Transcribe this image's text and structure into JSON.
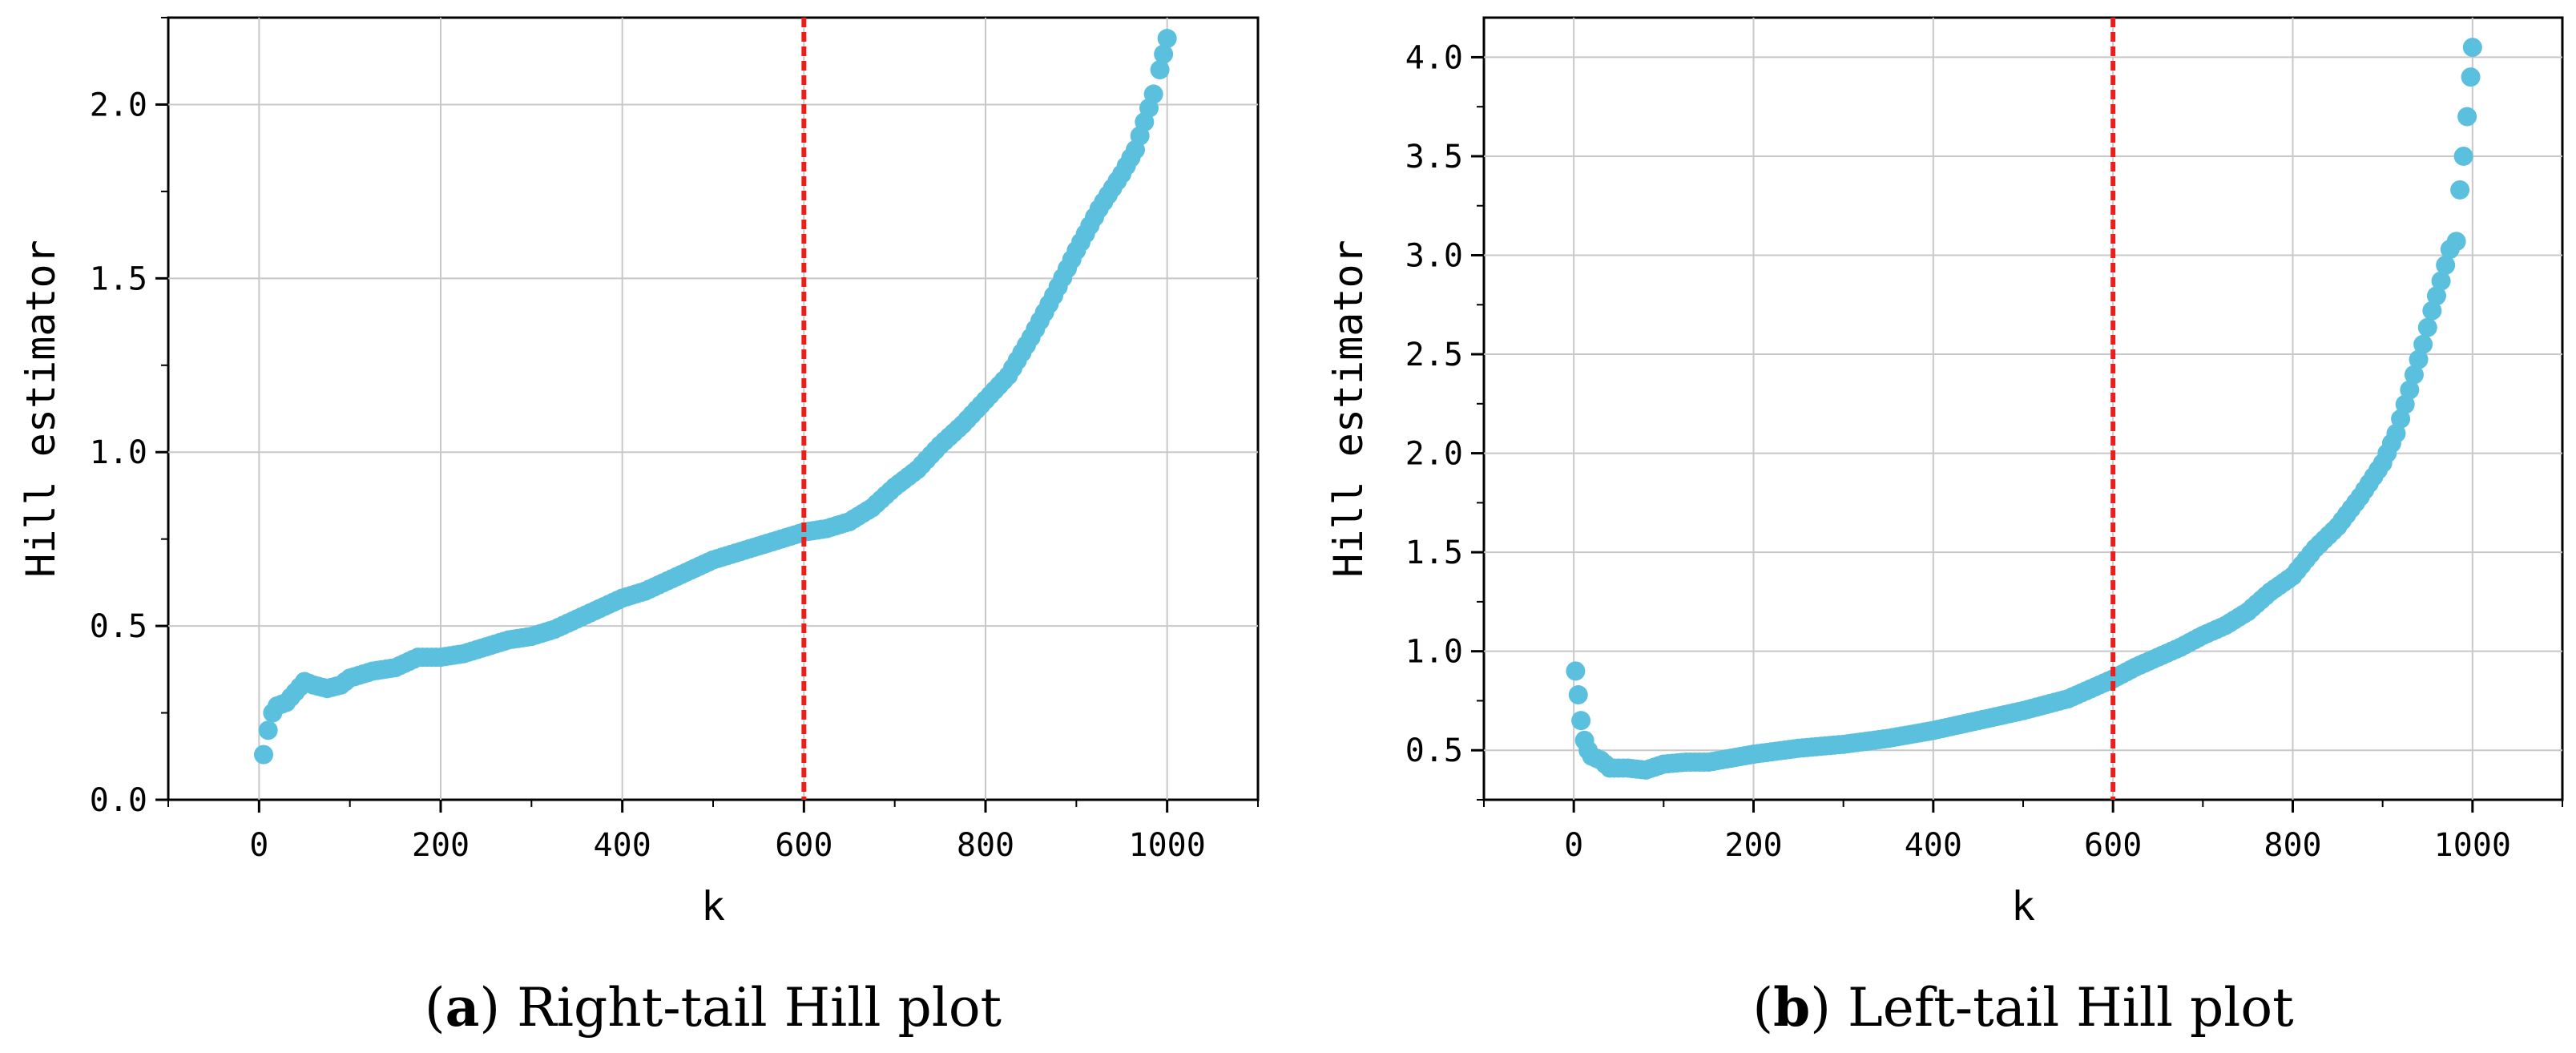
{
  "chart_data": [
    {
      "id": "a",
      "type": "scatter",
      "caption_letter": "a",
      "caption_text": "Right-tail Hill plot",
      "xlabel": "k",
      "ylabel": "Hill estimator",
      "xlim": [
        -100,
        1100
      ],
      "ylim": [
        0.0,
        2.25
      ],
      "xticks": [
        0,
        200,
        400,
        600,
        800,
        1000
      ],
      "yticks": [
        0.0,
        0.5,
        1.0,
        1.5,
        2.0
      ],
      "ytick_labels": [
        "0.0",
        "0.5",
        "1.0",
        "1.5",
        "2.0"
      ],
      "grid": true,
      "point_color": "#5bc0de",
      "threshold_k": 600,
      "threshold_color": "#e8201c",
      "series": {
        "name": "Hill estimate",
        "points": [
          [
            5,
            0.13
          ],
          [
            10,
            0.2
          ],
          [
            15,
            0.25
          ],
          [
            20,
            0.27
          ],
          [
            30,
            0.28
          ],
          [
            40,
            0.31
          ],
          [
            50,
            0.34
          ],
          [
            60,
            0.33
          ],
          [
            75,
            0.32
          ],
          [
            90,
            0.33
          ],
          [
            100,
            0.35
          ],
          [
            125,
            0.37
          ],
          [
            150,
            0.38
          ],
          [
            175,
            0.41
          ],
          [
            200,
            0.41
          ],
          [
            225,
            0.42
          ],
          [
            250,
            0.44
          ],
          [
            275,
            0.46
          ],
          [
            300,
            0.47
          ],
          [
            325,
            0.49
          ],
          [
            350,
            0.52
          ],
          [
            375,
            0.55
          ],
          [
            400,
            0.58
          ],
          [
            425,
            0.6
          ],
          [
            450,
            0.63
          ],
          [
            475,
            0.66
          ],
          [
            500,
            0.69
          ],
          [
            525,
            0.71
          ],
          [
            550,
            0.73
          ],
          [
            575,
            0.75
          ],
          [
            600,
            0.77
          ],
          [
            625,
            0.78
          ],
          [
            650,
            0.8
          ],
          [
            675,
            0.84
          ],
          [
            700,
            0.9
          ],
          [
            725,
            0.95
          ],
          [
            750,
            1.02
          ],
          [
            775,
            1.08
          ],
          [
            800,
            1.15
          ],
          [
            825,
            1.22
          ],
          [
            850,
            1.33
          ],
          [
            875,
            1.45
          ],
          [
            900,
            1.58
          ],
          [
            925,
            1.7
          ],
          [
            950,
            1.8
          ],
          [
            965,
            1.87
          ],
          [
            975,
            1.95
          ],
          [
            985,
            2.03
          ],
          [
            992,
            2.1
          ],
          [
            1000,
            2.19
          ]
        ]
      }
    },
    {
      "id": "b",
      "type": "scatter",
      "caption_letter": "b",
      "caption_text": "Left-tail Hill plot",
      "xlabel": "k",
      "ylabel": "Hill estimator",
      "xlim": [
        -100,
        1100
      ],
      "ylim": [
        0.25,
        4.2
      ],
      "xticks": [
        0,
        200,
        400,
        600,
        800,
        1000
      ],
      "yticks": [
        0.5,
        1.0,
        1.5,
        2.0,
        2.5,
        3.0,
        3.5,
        4.0
      ],
      "ytick_labels": [
        "0.5",
        "1.0",
        "1.5",
        "2.0",
        "2.5",
        "3.0",
        "3.5",
        "4.0"
      ],
      "grid": true,
      "point_color": "#5bc0de",
      "threshold_k": 600,
      "threshold_color": "#e8201c",
      "series": {
        "name": "Hill estimate",
        "points": [
          [
            2,
            0.9
          ],
          [
            5,
            0.78
          ],
          [
            8,
            0.65
          ],
          [
            12,
            0.55
          ],
          [
            16,
            0.5
          ],
          [
            20,
            0.47
          ],
          [
            30,
            0.45
          ],
          [
            40,
            0.41
          ],
          [
            60,
            0.41
          ],
          [
            80,
            0.4
          ],
          [
            100,
            0.43
          ],
          [
            125,
            0.44
          ],
          [
            150,
            0.44
          ],
          [
            175,
            0.46
          ],
          [
            200,
            0.48
          ],
          [
            250,
            0.51
          ],
          [
            300,
            0.53
          ],
          [
            350,
            0.56
          ],
          [
            400,
            0.6
          ],
          [
            450,
            0.65
          ],
          [
            500,
            0.7
          ],
          [
            550,
            0.76
          ],
          [
            600,
            0.86
          ],
          [
            625,
            0.92
          ],
          [
            650,
            0.97
          ],
          [
            675,
            1.02
          ],
          [
            700,
            1.08
          ],
          [
            725,
            1.13
          ],
          [
            750,
            1.2
          ],
          [
            775,
            1.3
          ],
          [
            800,
            1.38
          ],
          [
            825,
            1.52
          ],
          [
            850,
            1.63
          ],
          [
            875,
            1.78
          ],
          [
            900,
            1.95
          ],
          [
            915,
            2.1
          ],
          [
            930,
            2.32
          ],
          [
            945,
            2.55
          ],
          [
            955,
            2.72
          ],
          [
            965,
            2.87
          ],
          [
            975,
            3.03
          ],
          [
            982,
            3.07
          ],
          [
            986,
            3.33
          ],
          [
            990,
            3.5
          ],
          [
            994,
            3.7
          ],
          [
            998,
            3.9
          ],
          [
            1000,
            4.05
          ]
        ]
      }
    }
  ]
}
